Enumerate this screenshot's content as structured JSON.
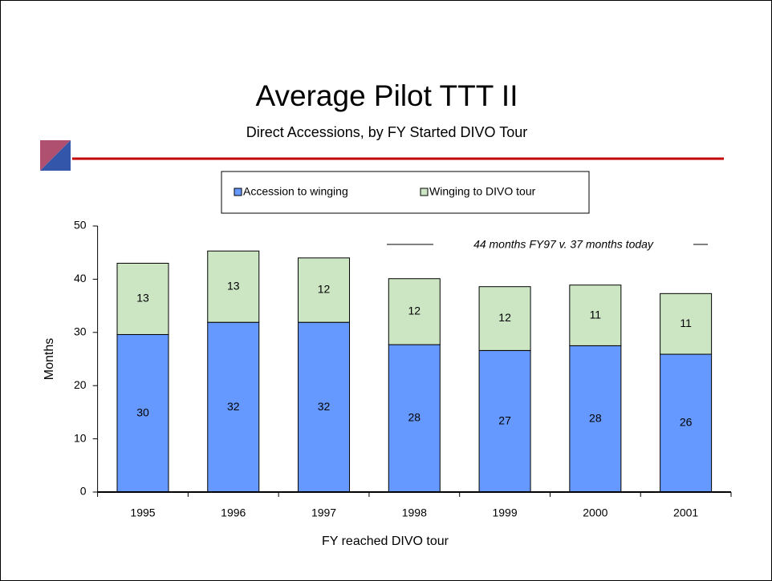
{
  "chart_data": {
    "type": "stacked_bar",
    "title": "Average Pilot TTT II",
    "subtitle": "Direct Accessions, by FY Started DIVO Tour",
    "x_label": "FY reached DIVO tour",
    "y_label": "Months",
    "annotation": "44 months FY97 v. 37 months today",
    "categories": [
      "1995",
      "1996",
      "1997",
      "1998",
      "1999",
      "2000",
      "2001"
    ],
    "series": [
      {
        "name": "Accession to winging",
        "color": "#6699ff",
        "values": [
          29.6,
          31.9,
          31.9,
          27.7,
          26.6,
          27.5,
          25.9
        ],
        "value_labels": [
          "30",
          "32",
          "32",
          "28",
          "27",
          "28",
          "26"
        ]
      },
      {
        "name": "Winging to DIVO tour",
        "color": "#cce6c4",
        "values": [
          13.4,
          13.4,
          12.1,
          12.4,
          12.0,
          11.4,
          11.4
        ],
        "value_labels": [
          "13",
          "13",
          "12",
          "12",
          "12",
          "11",
          "11"
        ]
      }
    ],
    "ylim": [
      0,
      50
    ],
    "yticks": [
      0,
      10,
      20,
      30,
      40,
      50
    ],
    "grid": false
  }
}
